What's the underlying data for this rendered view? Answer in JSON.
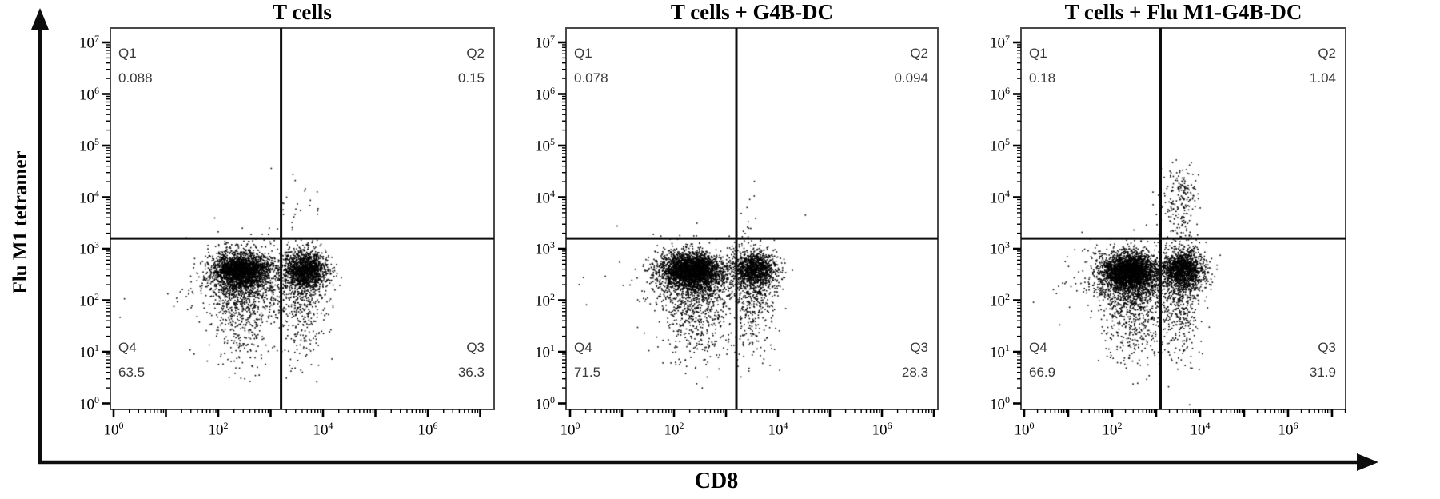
{
  "chart_data": {
    "type": "scatter",
    "subtype": "flow-cytometry-quadrant-dot-plot",
    "x_axis": {
      "label": "CD8",
      "scale": "log10",
      "tick_exponents": [
        0,
        2,
        4,
        6
      ],
      "range_log10": [
        0,
        7.3
      ]
    },
    "y_axis": {
      "label": "Flu M1 tetramer",
      "scale": "log10",
      "tick_exponents": [
        0,
        1,
        2,
        3,
        4,
        5,
        6,
        7
      ],
      "range_log10": [
        0,
        7.3
      ]
    },
    "style": {
      "dot_color": "#000000",
      "gate_color": "#0d0d0d",
      "box_color": "#4a4a4a",
      "quadrant_text_color": "#3a3a3a",
      "background": "#ffffff"
    },
    "panels": [
      {
        "title": "T cells",
        "gates": {
          "x_log10": 3.2,
          "y_log10": 3.2
        },
        "quadrants": {
          "q1": {
            "label": "Q1",
            "value": "0.088"
          },
          "q2": {
            "label": "Q2",
            "value": "0.15"
          },
          "q3": {
            "label": "Q3",
            "value": "36.3"
          },
          "q4": {
            "label": "Q4",
            "value": "63.5"
          }
        },
        "populations": [
          {
            "n": 2000,
            "cx": 2.45,
            "cy": 2.58,
            "sx": 0.26,
            "sy": 0.16
          },
          {
            "n": 1000,
            "cx": 2.4,
            "cy": 2.45,
            "sx": 0.34,
            "sy": 0.3
          },
          {
            "n": 450,
            "cx": 2.5,
            "cy": 1.75,
            "sx": 0.3,
            "sy": 0.5
          },
          {
            "n": 1150,
            "cx": 3.68,
            "cy": 2.6,
            "sx": 0.2,
            "sy": 0.16
          },
          {
            "n": 600,
            "cx": 3.62,
            "cy": 2.45,
            "sx": 0.26,
            "sy": 0.3
          },
          {
            "n": 280,
            "cx": 3.58,
            "cy": 1.75,
            "sx": 0.22,
            "sy": 0.5
          },
          {
            "n": 26,
            "cx": 3.45,
            "cy": 3.85,
            "sx": 0.25,
            "sy": 0.35
          },
          {
            "n": 45,
            "cx": 2.1,
            "cy": 2.3,
            "sx": 0.85,
            "sy": 0.55
          }
        ]
      },
      {
        "title": "T cells + G4B-DC",
        "gates": {
          "x_log10": 3.2,
          "y_log10": 3.2
        },
        "quadrants": {
          "q1": {
            "label": "Q1",
            "value": "0.078"
          },
          "q2": {
            "label": "Q2",
            "value": "0.094"
          },
          "q3": {
            "label": "Q3",
            "value": "28.3"
          },
          "q4": {
            "label": "Q4",
            "value": "71.5"
          }
        },
        "populations": [
          {
            "n": 2400,
            "cx": 2.35,
            "cy": 2.58,
            "sx": 0.3,
            "sy": 0.16
          },
          {
            "n": 1100,
            "cx": 2.35,
            "cy": 2.42,
            "sx": 0.36,
            "sy": 0.3
          },
          {
            "n": 470,
            "cx": 2.45,
            "cy": 1.7,
            "sx": 0.32,
            "sy": 0.5
          },
          {
            "n": 950,
            "cx": 3.55,
            "cy": 2.6,
            "sx": 0.2,
            "sy": 0.16
          },
          {
            "n": 500,
            "cx": 3.55,
            "cy": 2.45,
            "sx": 0.25,
            "sy": 0.3
          },
          {
            "n": 240,
            "cx": 3.5,
            "cy": 1.75,
            "sx": 0.22,
            "sy": 0.5
          },
          {
            "n": 13,
            "cx": 3.4,
            "cy": 3.75,
            "sx": 0.14,
            "sy": 0.35
          },
          {
            "n": 40,
            "cx": 2.0,
            "cy": 2.3,
            "sx": 0.8,
            "sy": 0.55
          }
        ]
      },
      {
        "title": "T cells + Flu M1-G4B-DC",
        "gates": {
          "x_log10": 3.1,
          "y_log10": 3.2
        },
        "quadrants": {
          "q1": {
            "label": "Q1",
            "value": "0.18"
          },
          "q2": {
            "label": "Q2",
            "value": "1.04"
          },
          "q3": {
            "label": "Q3",
            "value": "31.9"
          },
          "q4": {
            "label": "Q4",
            "value": "66.9"
          }
        },
        "populations": [
          {
            "n": 2400,
            "cx": 2.4,
            "cy": 2.55,
            "sx": 0.3,
            "sy": 0.17
          },
          {
            "n": 1100,
            "cx": 2.4,
            "cy": 2.4,
            "sx": 0.38,
            "sy": 0.3
          },
          {
            "n": 450,
            "cx": 2.5,
            "cy": 1.7,
            "sx": 0.35,
            "sy": 0.5
          },
          {
            "n": 1100,
            "cx": 3.6,
            "cy": 2.6,
            "sx": 0.22,
            "sy": 0.17
          },
          {
            "n": 570,
            "cx": 3.6,
            "cy": 2.45,
            "sx": 0.28,
            "sy": 0.3
          },
          {
            "n": 280,
            "cx": 3.55,
            "cy": 1.75,
            "sx": 0.25,
            "sy": 0.5
          },
          {
            "n": 150,
            "cx": 3.62,
            "cy": 4.05,
            "sx": 0.18,
            "sy": 0.28
          },
          {
            "n": 60,
            "cx": 3.5,
            "cy": 3.45,
            "sx": 0.22,
            "sy": 0.25
          },
          {
            "n": 10,
            "cx": 3.0,
            "cy": 3.7,
            "sx": 0.12,
            "sy": 0.3
          },
          {
            "n": 70,
            "cx": 1.6,
            "cy": 2.5,
            "sx": 0.55,
            "sy": 0.35
          }
        ]
      }
    ]
  }
}
